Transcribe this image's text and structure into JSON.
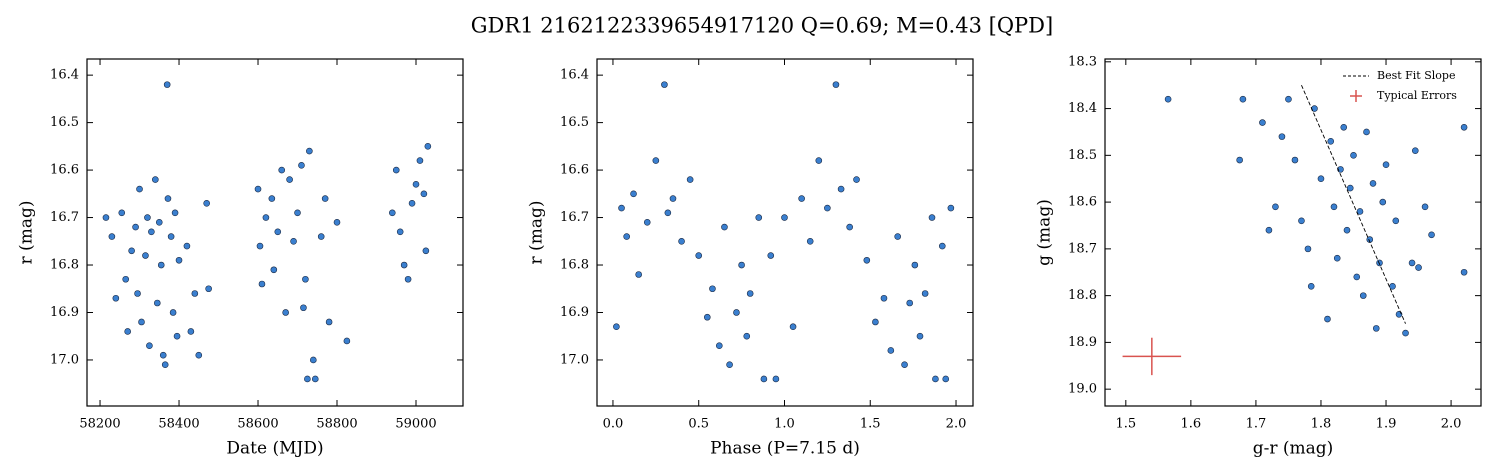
{
  "title": "GDR1 2162122339654917120  Q=0.69; M=0.43 [QPD]",
  "chart_data": [
    {
      "type": "scatter",
      "x_label": "Date (MJD)",
      "y_label": "r (mag)",
      "color": "#3a7fcf",
      "xlim": [
        58167,
        59119
      ],
      "ylim": [
        17.097,
        16.366
      ],
      "xticks": [
        58200,
        58400,
        58600,
        58800,
        59000
      ],
      "yticks": [
        16.4,
        16.5,
        16.6,
        16.7,
        16.8,
        16.9,
        {
          "value": 17,
          "label": "17.0"
        }
      ],
      "x": [
        58215,
        58230,
        58240,
        58255,
        58265,
        58270,
        58280,
        58290,
        58295,
        58300,
        58305,
        58315,
        58320,
        58325,
        58330,
        58340,
        58345,
        58350,
        58355,
        58360,
        58365,
        58370,
        58372,
        58380,
        58385,
        58390,
        58395,
        58400,
        58420,
        58430,
        58440,
        58450,
        58470,
        58475,
        58600,
        58605,
        58610,
        58620,
        58635,
        58640,
        58650,
        58660,
        58670,
        58680,
        58690,
        58700,
        58710,
        58715,
        58720,
        58725,
        58730,
        58740,
        58745,
        58760,
        58770,
        58780,
        58800,
        58825,
        58940,
        58950,
        58960,
        58970,
        58980,
        58990,
        59000,
        59010,
        59020,
        59025,
        59030
      ],
      "values": [
        16.7,
        16.74,
        16.87,
        16.69,
        16.83,
        16.94,
        16.77,
        16.72,
        16.86,
        16.64,
        16.92,
        16.78,
        16.7,
        16.97,
        16.73,
        16.62,
        16.88,
        16.71,
        16.8,
        16.99,
        17.01,
        16.42,
        16.66,
        16.74,
        16.9,
        16.69,
        16.95,
        16.79,
        16.76,
        16.94,
        16.86,
        16.99,
        16.67,
        16.85,
        16.64,
        16.76,
        16.84,
        16.7,
        16.66,
        16.81,
        16.73,
        16.6,
        16.9,
        16.62,
        16.75,
        16.69,
        16.59,
        16.89,
        16.83,
        17.04,
        16.56,
        17.0,
        17.04,
        16.74,
        16.66,
        16.92,
        16.71,
        16.96,
        16.69,
        16.6,
        16.73,
        16.8,
        16.83,
        16.67,
        16.63,
        16.58,
        16.65,
        16.77,
        16.55
      ]
    },
    {
      "type": "scatter",
      "x_label": "Phase (P=7.15 d)",
      "y_label": "r (mag)",
      "color": "#3a7fcf",
      "xlim": [
        -0.093,
        2.099
      ],
      "ylim": [
        17.097,
        16.366
      ],
      "xticks": [
        {
          "value": 0,
          "label": "0.0"
        },
        0.5,
        {
          "value": 1,
          "label": "1.0"
        },
        1.5,
        {
          "value": 2,
          "label": "2.0"
        }
      ],
      "yticks": [
        16.4,
        16.5,
        16.6,
        16.7,
        16.8,
        16.9,
        {
          "value": 17,
          "label": "17.0"
        }
      ],
      "x": [
        0.02,
        0.05,
        0.08,
        0.12,
        0.15,
        0.2,
        0.25,
        0.3,
        0.32,
        0.35,
        0.4,
        0.45,
        0.5,
        0.55,
        0.58,
        0.62,
        0.65,
        0.68,
        0.72,
        0.75,
        0.78,
        0.8,
        0.85,
        0.88,
        0.92,
        0.95,
        1.0,
        1.05,
        1.1,
        1.15,
        1.2,
        1.25,
        1.3,
        1.33,
        1.38,
        1.42,
        1.48,
        1.53,
        1.58,
        1.62,
        1.66,
        1.7,
        1.73,
        1.76,
        1.79,
        1.82,
        1.86,
        1.88,
        1.92,
        1.94,
        1.97
      ],
      "values": [
        16.93,
        16.68,
        16.74,
        16.65,
        16.82,
        16.71,
        16.58,
        16.42,
        16.69,
        16.66,
        16.75,
        16.62,
        16.78,
        16.91,
        16.85,
        16.97,
        16.72,
        17.01,
        16.9,
        16.8,
        16.95,
        16.86,
        16.7,
        17.04,
        16.78,
        17.04,
        16.7,
        16.93,
        16.66,
        16.75,
        16.58,
        16.68,
        16.42,
        16.64,
        16.72,
        16.62,
        16.79,
        16.92,
        16.87,
        16.98,
        16.74,
        17.01,
        16.88,
        16.8,
        16.95,
        16.86,
        16.7,
        17.04,
        16.76,
        17.04,
        16.68
      ]
    },
    {
      "type": "scatter",
      "x_label": "g-r (mag)",
      "y_label": "g (mag)",
      "color": "#3a7fcf",
      "xlim": [
        1.468,
        2.046
      ],
      "ylim": [
        19.036,
        18.294
      ],
      "xticks": [
        1.5,
        1.6,
        1.7,
        1.8,
        1.9,
        {
          "value": 2,
          "label": "2.0"
        }
      ],
      "yticks": [
        18.3,
        18.4,
        18.5,
        18.6,
        18.7,
        18.8,
        18.9,
        {
          "value": 19,
          "label": "19.0"
        }
      ],
      "legend": "upper right",
      "x": [
        1.565,
        1.675,
        1.68,
        1.71,
        1.72,
        1.73,
        1.74,
        1.75,
        1.76,
        1.77,
        1.78,
        1.785,
        1.79,
        1.8,
        1.81,
        1.815,
        1.82,
        1.825,
        1.83,
        1.835,
        1.84,
        1.845,
        1.85,
        1.855,
        1.86,
        1.865,
        1.87,
        1.875,
        1.88,
        1.885,
        1.89,
        1.895,
        1.9,
        1.91,
        1.915,
        1.92,
        1.93,
        1.94,
        1.945,
        1.95,
        1.96,
        1.97,
        2.02,
        2.02
      ],
      "values": [
        18.38,
        18.51,
        18.38,
        18.43,
        18.66,
        18.61,
        18.46,
        18.38,
        18.51,
        18.64,
        18.7,
        18.78,
        18.4,
        18.55,
        18.85,
        18.47,
        18.61,
        18.72,
        18.53,
        18.44,
        18.66,
        18.57,
        18.5,
        18.76,
        18.62,
        18.8,
        18.45,
        18.68,
        18.56,
        18.87,
        18.73,
        18.6,
        18.52,
        18.78,
        18.64,
        18.84,
        18.88,
        18.73,
        18.49,
        18.74,
        18.61,
        18.67,
        18.44,
        18.75
      ],
      "fit_line": {
        "name": "Best Fit Slope",
        "color": "#000000",
        "x": [
          1.77,
          1.93
        ],
        "values": [
          18.35,
          18.86
        ]
      },
      "typical_errors": {
        "name": "Typical Errors",
        "color": "#d9534f",
        "x": 1.54,
        "value": 18.93,
        "xerr": 0.045,
        "yerr": 0.04
      }
    }
  ]
}
